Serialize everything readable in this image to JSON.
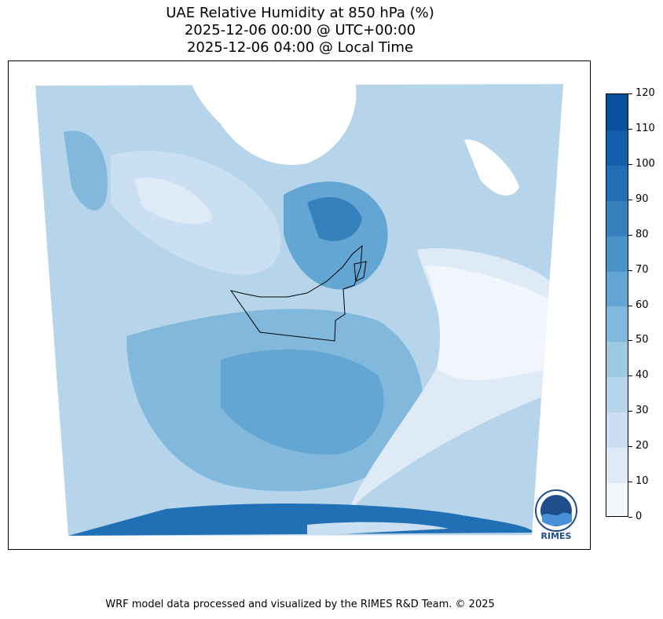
{
  "title": {
    "line1": "UAE Relative Humidity at 850 hPa (%)",
    "line2": "2025-12-06 00:00 @ UTC+00:00",
    "line3": "2025-12-06 04:00 @ Local Time"
  },
  "colorbar": {
    "ticks": [
      "0",
      "10",
      "20",
      "30",
      "40",
      "50",
      "60",
      "70",
      "80",
      "90",
      "100",
      "110",
      "120"
    ],
    "colors": [
      "#f0f6fc",
      "#deebf7",
      "#cbdff2",
      "#b6d4ea",
      "#9ecae1",
      "#81b8dc",
      "#63a6d4",
      "#4993c8",
      "#3581be",
      "#2170b5",
      "#1060ab",
      "#08509b",
      "#083b7a"
    ]
  },
  "logo": {
    "text": "RIMES"
  },
  "footer": "WRF model data processed and visualized by the RIMES R&D Team. © 2025"
}
